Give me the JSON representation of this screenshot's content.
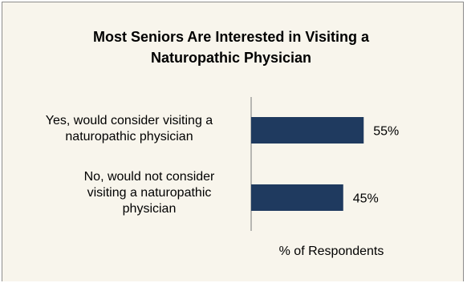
{
  "chart_data": {
    "type": "bar",
    "orientation": "horizontal",
    "title": "Most Seniors Are Interested in Visiting a Naturopathic Physician",
    "categories": [
      "Yes, would consider visiting a naturopathic physician",
      "No, would not consider visiting a naturopathic physician"
    ],
    "category_labels_display": [
      "Yes, would consider visiting a\nnaturopathic physician",
      "No, would not consider\nvisiting a naturopathic\nphysician"
    ],
    "values": [
      55,
      45
    ],
    "data_labels": [
      "55%",
      "45%"
    ],
    "xlabel": "% of Respondents",
    "ylabel": "",
    "xlim": [
      0,
      60
    ],
    "grid": false,
    "legend": "none",
    "bar_color": "#1f3a5f",
    "background_color": "#f8f5ec"
  }
}
